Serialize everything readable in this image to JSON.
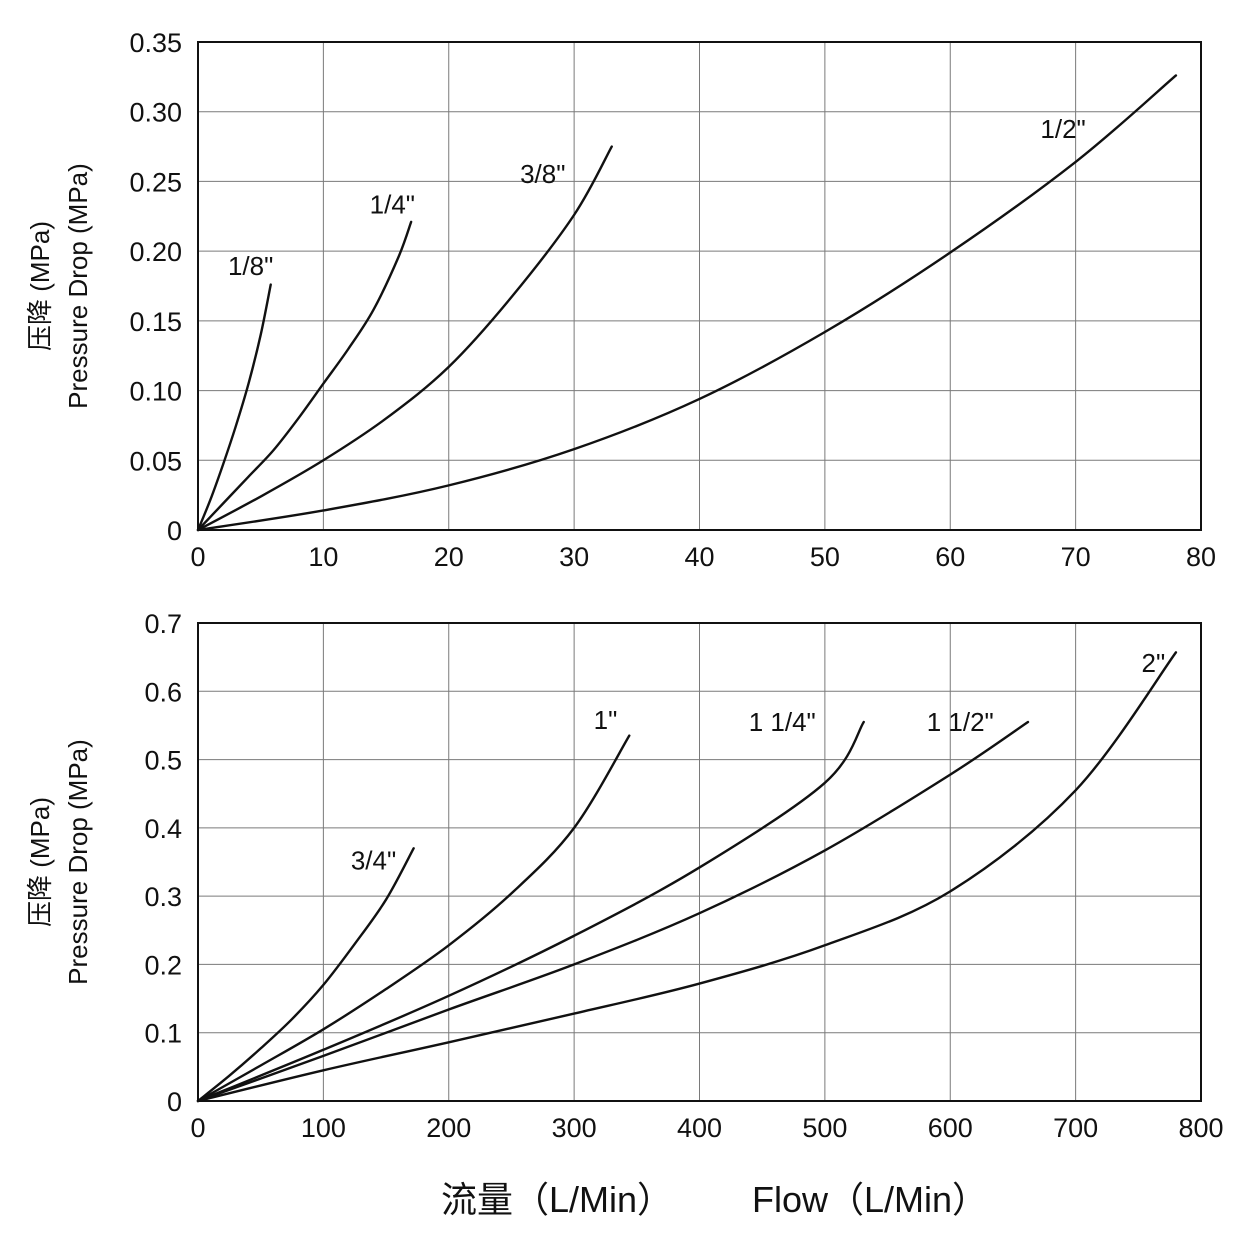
{
  "chart_data": [
    {
      "type": "line",
      "title": "",
      "xlabel": "",
      "ylabel": "Pressure Drop (MPa)",
      "ylabel_cn": "压降 (MPa)",
      "xlim": [
        0,
        80
      ],
      "ylim": [
        0,
        0.35
      ],
      "x_ticks": [
        0,
        10,
        20,
        30,
        40,
        50,
        60,
        70,
        80
      ],
      "x_tick_labels": [
        "0",
        "10",
        "20",
        "30",
        "40",
        "50",
        "60",
        "70",
        "80"
      ],
      "y_ticks": [
        0,
        0.05,
        0.1,
        0.15,
        0.2,
        0.25,
        0.3,
        0.35
      ],
      "y_tick_labels": [
        "0",
        "0.05",
        "0.10",
        "0.15",
        "0.20",
        "0.25",
        "0.30",
        "0.35"
      ],
      "grid": true,
      "series": [
        {
          "name": "1/8\"",
          "x": [
            0,
            1,
            2,
            3,
            4,
            5,
            5.8
          ],
          "y": [
            0,
            0.022,
            0.047,
            0.074,
            0.104,
            0.14,
            0.176
          ],
          "label_x": 4.2,
          "label_y": 0.183
        },
        {
          "name": "1/4\"",
          "x": [
            0,
            2,
            4,
            6,
            8,
            10,
            12,
            14,
            16,
            17
          ],
          "y": [
            0,
            0.019,
            0.038,
            0.057,
            0.08,
            0.105,
            0.13,
            0.158,
            0.196,
            0.221
          ],
          "label_x": 15.5,
          "label_y": 0.227
        },
        {
          "name": "3/8\"",
          "x": [
            0,
            5,
            10,
            15,
            20,
            25,
            30,
            33
          ],
          "y": [
            0,
            0.024,
            0.05,
            0.08,
            0.117,
            0.167,
            0.226,
            0.275
          ],
          "label_x": 27.5,
          "label_y": 0.249
        },
        {
          "name": "1/2\"",
          "x": [
            0,
            10,
            20,
            30,
            40,
            50,
            60,
            70,
            78
          ],
          "y": [
            0,
            0.014,
            0.032,
            0.058,
            0.094,
            0.142,
            0.199,
            0.264,
            0.326
          ],
          "label_x": 69.0,
          "label_y": 0.281
        }
      ]
    },
    {
      "type": "line",
      "title": "",
      "xlabel": "流量（L/Min）　Flow（L/Min）",
      "ylabel": "Pressure Drop (MPa)",
      "ylabel_cn": "压降 (MPa)",
      "xlim": [
        0,
        800
      ],
      "ylim": [
        0,
        0.7
      ],
      "x_ticks": [
        0,
        100,
        200,
        300,
        400,
        500,
        600,
        700,
        800
      ],
      "x_tick_labels": [
        "0",
        "100",
        "200",
        "300",
        "400",
        "500",
        "600",
        "700",
        "800"
      ],
      "y_ticks": [
        0,
        0.1,
        0.2,
        0.3,
        0.4,
        0.5,
        0.6,
        0.7
      ],
      "y_tick_labels": [
        "0",
        "0.1",
        "0.2",
        "0.3",
        "0.4",
        "0.5",
        "0.6",
        "0.7"
      ],
      "grid": true,
      "series": [
        {
          "name": "3/4\"",
          "x": [
            0,
            25,
            50,
            75,
            100,
            125,
            150,
            172
          ],
          "y": [
            0,
            0.037,
            0.077,
            0.12,
            0.17,
            0.23,
            0.295,
            0.37
          ],
          "label_x": 140,
          "label_y": 0.339
        },
        {
          "name": "1\"",
          "x": [
            0,
            50,
            100,
            150,
            200,
            250,
            300,
            344
          ],
          "y": [
            0,
            0.052,
            0.105,
            0.164,
            0.228,
            0.304,
            0.4,
            0.535
          ],
          "label_x": 325,
          "label_y": 0.545
        },
        {
          "name": "1 1/4\"",
          "x": [
            0,
            100,
            200,
            300,
            400,
            500,
            531
          ],
          "y": [
            0,
            0.075,
            0.154,
            0.242,
            0.342,
            0.466,
            0.555
          ],
          "label_x": 466,
          "label_y": 0.542
        },
        {
          "name": "1 1/2\"",
          "x": [
            0,
            100,
            200,
            300,
            400,
            500,
            600,
            662
          ],
          "y": [
            0,
            0.066,
            0.134,
            0.2,
            0.275,
            0.367,
            0.478,
            0.555
          ],
          "label_x": 608,
          "label_y": 0.542
        },
        {
          "name": "2\"",
          "x": [
            0,
            100,
            200,
            300,
            400,
            500,
            600,
            700,
            780
          ],
          "y": [
            0,
            0.045,
            0.086,
            0.128,
            0.172,
            0.228,
            0.307,
            0.455,
            0.657
          ],
          "label_x": 762,
          "label_y": 0.628
        }
      ]
    }
  ],
  "x_axis_label": {
    "cn": "流量（L/Min）",
    "en": "Flow（L/Min）"
  }
}
